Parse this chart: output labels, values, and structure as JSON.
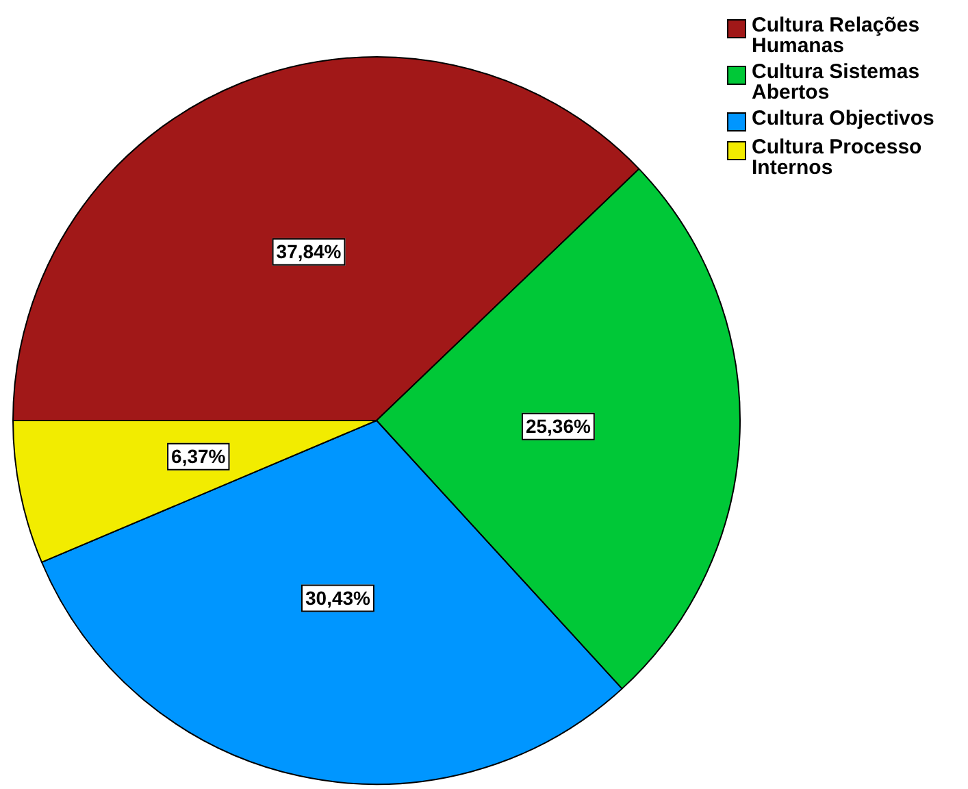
{
  "chart_data": {
    "type": "pie",
    "categories": [
      "Cultura Relações Humanas",
      "Cultura Sistemas Abertos",
      "Cultura Objectivos",
      "Cultura Processo Internos"
    ],
    "values": [
      37.84,
      25.36,
      30.43,
      6.37
    ],
    "colors": [
      "#a11818",
      "#00c837",
      "#0096ff",
      "#f2ec00"
    ],
    "value_labels": [
      "37,84%",
      "25,36%",
      "30,43%",
      "6,37%"
    ],
    "legend": "top right"
  }
}
